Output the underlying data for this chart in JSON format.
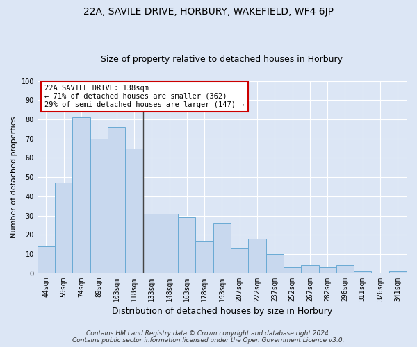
{
  "title": "22A, SAVILE DRIVE, HORBURY, WAKEFIELD, WF4 6JP",
  "subtitle": "Size of property relative to detached houses in Horbury",
  "xlabel": "Distribution of detached houses by size in Horbury",
  "ylabel": "Number of detached properties",
  "categories": [
    "44sqm",
    "59sqm",
    "74sqm",
    "89sqm",
    "103sqm",
    "118sqm",
    "133sqm",
    "148sqm",
    "163sqm",
    "178sqm",
    "193sqm",
    "207sqm",
    "222sqm",
    "237sqm",
    "252sqm",
    "267sqm",
    "282sqm",
    "296sqm",
    "311sqm",
    "326sqm",
    "341sqm"
  ],
  "values": [
    14,
    47,
    81,
    70,
    76,
    65,
    31,
    31,
    29,
    17,
    26,
    13,
    18,
    10,
    3,
    4,
    3,
    4,
    1,
    0,
    1
  ],
  "bar_color": "#c8d8ee",
  "bar_edge_color": "#6aaad4",
  "highlight_bar_index": 6,
  "annotation_text": "22A SAVILE DRIVE: 138sqm\n← 71% of detached houses are smaller (362)\n29% of semi-detached houses are larger (147) →",
  "annotation_box_facecolor": "#ffffff",
  "annotation_box_edgecolor": "#cc0000",
  "ylim": [
    0,
    100
  ],
  "yticks": [
    0,
    10,
    20,
    30,
    40,
    50,
    60,
    70,
    80,
    90,
    100
  ],
  "fig_facecolor": "#dce6f5",
  "ax_facecolor": "#dce6f5",
  "grid_color": "#ffffff",
  "footer_line1": "Contains HM Land Registry data © Crown copyright and database right 2024.",
  "footer_line2": "Contains public sector information licensed under the Open Government Licence v3.0.",
  "title_fontsize": 10,
  "subtitle_fontsize": 9,
  "xlabel_fontsize": 9,
  "ylabel_fontsize": 8,
  "tick_fontsize": 7,
  "annotation_fontsize": 7.5,
  "footer_fontsize": 6.5
}
